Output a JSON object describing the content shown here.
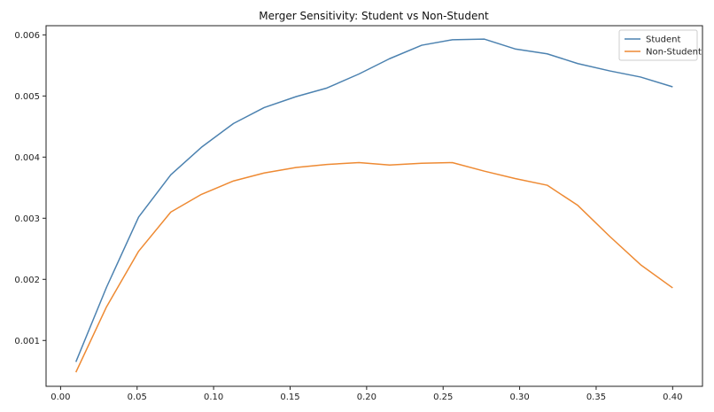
{
  "chart_data": {
    "type": "line",
    "title": "Merger Sensitivity: Student vs Non-Student",
    "xlabel": "",
    "ylabel": "",
    "xlim": [
      -0.0095,
      0.4195
    ],
    "ylim": [
      0.00025,
      0.00615
    ],
    "xticks": [
      0.0,
      0.05,
      0.1,
      0.15,
      0.2,
      0.25,
      0.3,
      0.35,
      0.4
    ],
    "xtick_labels": [
      "0.00",
      "0.05",
      "0.10",
      "0.15",
      "0.20",
      "0.25",
      "0.30",
      "0.35",
      "0.40"
    ],
    "yticks": [
      0.001,
      0.002,
      0.003,
      0.004,
      0.005,
      0.006
    ],
    "ytick_labels": [
      "0.001",
      "0.002",
      "0.003",
      "0.004",
      "0.005",
      "0.006"
    ],
    "grid": false,
    "legend_position": "top-right",
    "x": [
      0.01,
      0.03,
      0.051,
      0.072,
      0.092,
      0.113,
      0.133,
      0.154,
      0.174,
      0.195,
      0.215,
      0.236,
      0.256,
      0.277,
      0.297,
      0.318,
      0.338,
      0.359,
      0.379,
      0.4
    ],
    "series": [
      {
        "name": "Student",
        "color": "#4c82b0",
        "values": [
          0.00065,
          0.00187,
          0.00302,
          0.00371,
          0.00416,
          0.00455,
          0.00481,
          0.00499,
          0.00513,
          0.00536,
          0.00561,
          0.00583,
          0.00592,
          0.00593,
          0.00577,
          0.00569,
          0.00553,
          0.00541,
          0.00531,
          0.00515
        ]
      },
      {
        "name": "Non-Student",
        "color": "#ee8a33",
        "values": [
          0.00048,
          0.00155,
          0.00246,
          0.0031,
          0.00339,
          0.00361,
          0.00374,
          0.00383,
          0.00388,
          0.00391,
          0.00387,
          0.0039,
          0.00391,
          0.00377,
          0.00365,
          0.00354,
          0.00321,
          0.0027,
          0.00224,
          0.00186
        ]
      }
    ]
  }
}
